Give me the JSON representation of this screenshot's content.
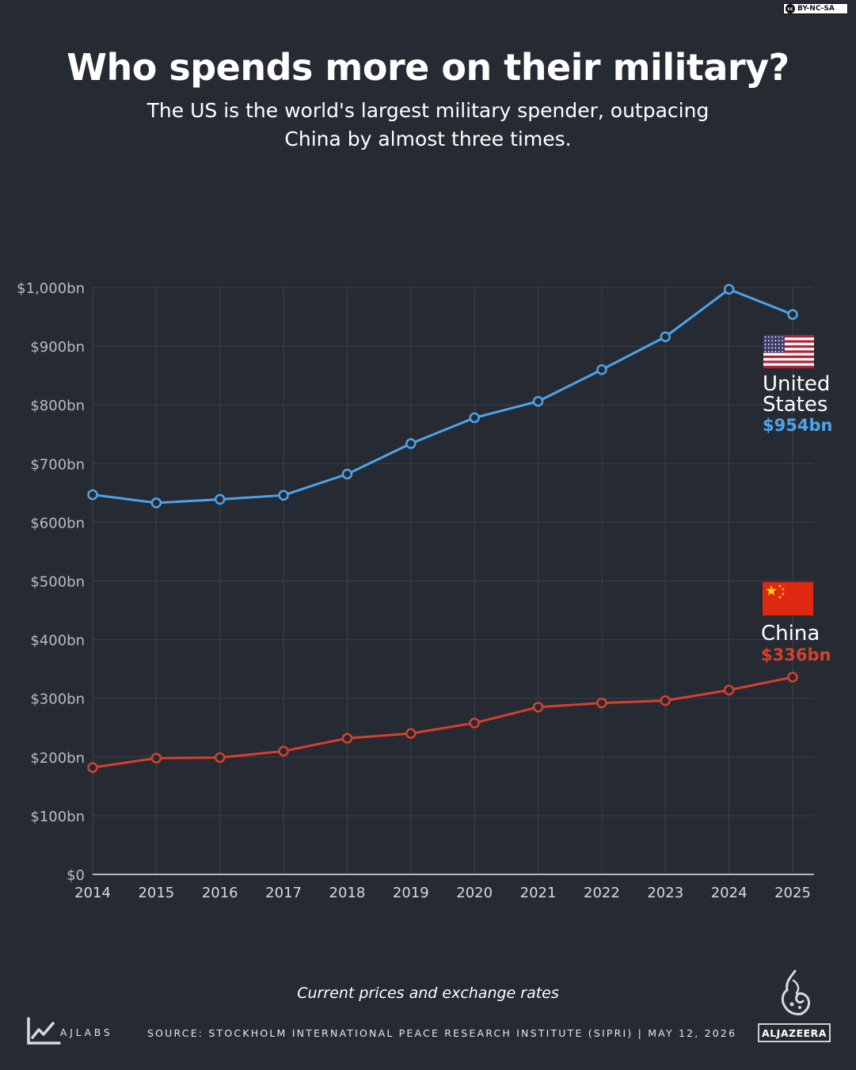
{
  "license": "BY-NC-SA",
  "license_icon": "cc",
  "title": "Who spends more on their military?",
  "subtitle": "The US is the world's largest military spender, outpacing China by almost three times.",
  "note": "Current prices and exchange rates",
  "source": "SOURCE:  STOCKHOLM INTERNATIONAL PEACE RESEARCH INSTITUTE (SIPRI)  |  MAY 12, 2026",
  "brand_left": "AJLABS",
  "brand_right": "ALJAZEERA",
  "colors": {
    "background": "#262b33",
    "us": "#4da3ea",
    "china": "#d5402c",
    "grid": "#3b414b",
    "tick": "#b9bcc1"
  },
  "chart_data": {
    "type": "line",
    "x": [
      2014,
      2015,
      2016,
      2017,
      2018,
      2019,
      2020,
      2021,
      2022,
      2023,
      2024,
      2025
    ],
    "ylim": [
      0,
      1000
    ],
    "yticks": [
      "$0",
      "$100bn",
      "$200bn",
      "$300bn",
      "$400bn",
      "$500bn",
      "$600bn",
      "$700bn",
      "$800bn",
      "$900bn",
      "$1,000bn"
    ],
    "grid": true,
    "series": [
      {
        "name": "United States",
        "label_lines": [
          "United",
          "States"
        ],
        "end_label": "$954bn",
        "color": "#4da3ea",
        "flag": "us-flag",
        "values": [
          647,
          633,
          639,
          646,
          682,
          734,
          778,
          806,
          860,
          916,
          997,
          954
        ]
      },
      {
        "name": "China",
        "label_lines": [
          "China"
        ],
        "end_label": "$336bn",
        "color": "#d5402c",
        "flag": "china-flag",
        "values": [
          182,
          198,
          199,
          210,
          232,
          240,
          258,
          285,
          292,
          296,
          314,
          336
        ]
      }
    ]
  }
}
